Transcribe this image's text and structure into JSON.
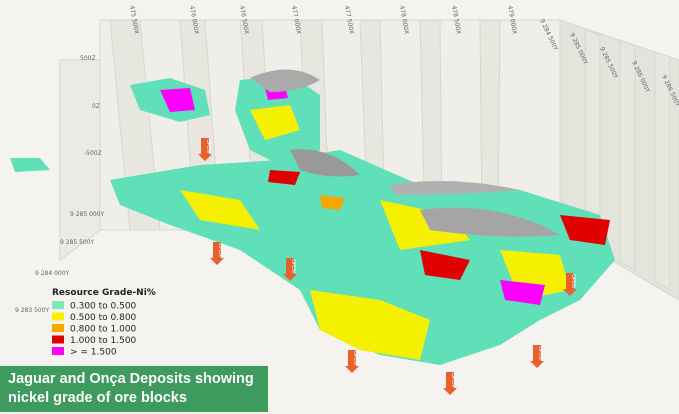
{
  "axis_labels": {
    "top": [
      "475 500X",
      "476 000X",
      "476 500X",
      "477 000X",
      "477 500X",
      "478 000X",
      "478 500X",
      "479 000X"
    ],
    "right": [
      "9 284 500Y",
      "9 285 000Y",
      "9 285 500Y",
      "9 286 000Y",
      "9 286 500Y"
    ],
    "left": [
      "500Z",
      "0Z",
      "-500Z",
      "9 285 000Y",
      "9 285 500Y",
      "9 284 000Y",
      "9 283 500Y"
    ]
  },
  "open_markers": [
    "OPEN",
    "OPEN",
    "OPEN",
    "OPEN",
    "OPEN",
    "OPEN",
    "OPEN"
  ],
  "legend": {
    "title": "Resource Grade-Ni%",
    "items": [
      {
        "label": "0.300 to 0.500",
        "color": "#7ee8b4"
      },
      {
        "label": "0.500 to 0.800",
        "color": "#f5f000"
      },
      {
        "label": "0.800 to 1.000",
        "color": "#f5a800"
      },
      {
        "label": "1.000 to 1.500",
        "color": "#e00000"
      },
      {
        "label": "> = 1.500",
        "color": "#ff00ff"
      }
    ]
  },
  "caption": [
    "Jaguar and Onça Deposits showing",
    "nickel grade of ore blocks"
  ]
}
